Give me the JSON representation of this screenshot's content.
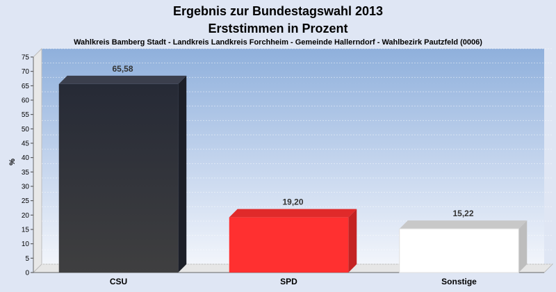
{
  "chart_data": {
    "type": "bar",
    "title": "Ergebnis zur Bundestagswahl 2013",
    "title2": "Erststimmen in Prozent",
    "subtitle": "Wahlkreis Bamberg Stadt - Landkreis Landkreis Forchheim - Gemeinde Hallerndorf - Wahlbezirk Pautzfeld (0006)",
    "ylabel": "%",
    "xlabel": "",
    "ylim": [
      0,
      75
    ],
    "yticks": [
      "0",
      "5",
      "10",
      "15",
      "20",
      "25",
      "30",
      "35",
      "40",
      "45",
      "50",
      "55",
      "60",
      "65",
      "70",
      "75"
    ],
    "grid": true,
    "categories": [
      "CSU",
      "SPD",
      "Sonstige"
    ],
    "values": [
      65.58,
      19.2,
      15.22
    ],
    "value_labels": [
      "65,58",
      "19,20",
      "15,22"
    ],
    "colors": [
      "#2b2d38",
      "#ff3030",
      "#ffffff"
    ]
  }
}
